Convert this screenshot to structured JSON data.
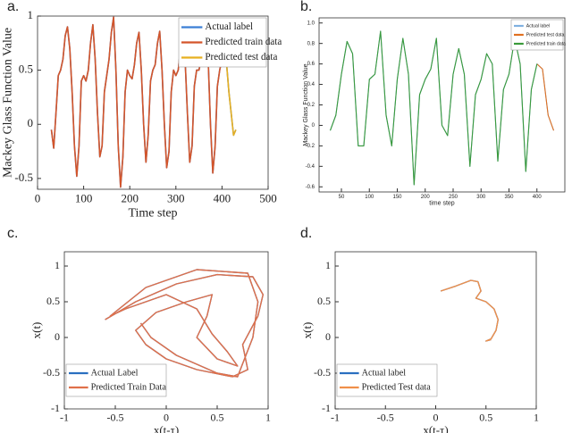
{
  "chart_data": [
    {
      "type": "line",
      "label": "a.",
      "xlabel": "Time step",
      "ylabel": "Mackey Glass Function Value",
      "xlim": [
        0,
        500
      ],
      "xticks": [
        0,
        100,
        200,
        300,
        400,
        500
      ],
      "ylim": [
        -0.6,
        1
      ],
      "yticks": [
        -0.5,
        0,
        0.5,
        1
      ],
      "legend": "upper right",
      "x": [
        30,
        35,
        40,
        45,
        50,
        55,
        60,
        65,
        70,
        75,
        80,
        85,
        90,
        95,
        100,
        105,
        110,
        115,
        120,
        125,
        130,
        135,
        140,
        145,
        150,
        155,
        160,
        165,
        170,
        175,
        180,
        185,
        190,
        195,
        200,
        205,
        210,
        215,
        220,
        225,
        230,
        235,
        240,
        245,
        250,
        255,
        260,
        265,
        270,
        275,
        280,
        285,
        290,
        295,
        300,
        305,
        310,
        315,
        320,
        325,
        330,
        335,
        340,
        345,
        350,
        355,
        360,
        365,
        370,
        375,
        380,
        385,
        390,
        395,
        400,
        405,
        410,
        415,
        420,
        425,
        430
      ],
      "series": [
        {
          "name": "Actual label",
          "color": "#3a7fd5",
          "values": [
            -0.05,
            -0.22,
            0.1,
            0.45,
            0.5,
            0.6,
            0.82,
            0.9,
            0.7,
            0.3,
            -0.2,
            -0.48,
            -0.2,
            0.4,
            0.45,
            0.4,
            0.5,
            0.75,
            0.92,
            0.6,
            0.1,
            -0.3,
            -0.2,
            0.3,
            0.45,
            0.6,
            0.85,
            0.99,
            0.5,
            -0.2,
            -0.58,
            -0.3,
            0.3,
            0.5,
            0.45,
            0.42,
            0.55,
            0.75,
            0.85,
            0.5,
            0.0,
            -0.35,
            -0.1,
            0.4,
            0.5,
            0.55,
            0.75,
            0.86,
            0.5,
            0.0,
            -0.4,
            -0.25,
            0.3,
            0.5,
            0.45,
            0.5,
            0.7,
            0.88,
            0.6,
            0.1,
            -0.35,
            -0.2,
            0.35,
            0.5,
            0.5,
            0.6,
            0.85,
            0.95,
            0.6,
            0.0,
            -0.45,
            -0.2,
            0.35,
            0.5,
            0.6,
            0.72,
            0.55,
            0.3,
            0.1,
            -0.1,
            -0.05
          ]
        },
        {
          "name": "Predicted train data",
          "color": "#d4552a",
          "values": [
            -0.05,
            -0.22,
            0.1,
            0.45,
            0.5,
            0.6,
            0.82,
            0.9,
            0.7,
            0.3,
            -0.2,
            -0.48,
            -0.2,
            0.4,
            0.45,
            0.4,
            0.5,
            0.75,
            0.92,
            0.6,
            0.1,
            -0.3,
            -0.2,
            0.3,
            0.45,
            0.6,
            0.85,
            0.99,
            0.5,
            -0.2,
            -0.58,
            -0.3,
            0.3,
            0.5,
            0.45,
            0.42,
            0.55,
            0.75,
            0.85,
            0.5,
            0.0,
            -0.35,
            -0.1,
            0.4,
            0.5,
            0.55,
            0.75,
            0.86,
            0.5,
            0.0,
            -0.4,
            -0.25,
            0.3,
            0.5,
            0.45,
            0.5,
            0.7,
            0.88,
            0.6,
            0.1,
            -0.35,
            -0.2,
            0.35,
            0.5,
            0.5,
            0.6,
            0.85,
            0.95,
            0.6,
            0.0,
            -0.45,
            -0.2,
            0.35,
            0.5,
            0.6,
            null,
            null,
            null,
            null,
            null,
            null
          ]
        },
        {
          "name": "Predicted test data",
          "color": "#e8b020",
          "values": [
            null,
            null,
            null,
            null,
            null,
            null,
            null,
            null,
            null,
            null,
            null,
            null,
            null,
            null,
            null,
            null,
            null,
            null,
            null,
            null,
            null,
            null,
            null,
            null,
            null,
            null,
            null,
            null,
            null,
            null,
            null,
            null,
            null,
            null,
            null,
            null,
            null,
            null,
            null,
            null,
            null,
            null,
            null,
            null,
            null,
            null,
            null,
            null,
            null,
            null,
            null,
            null,
            null,
            null,
            null,
            null,
            null,
            null,
            null,
            null,
            null,
            null,
            null,
            null,
            null,
            null,
            null,
            null,
            null,
            null,
            null,
            null,
            null,
            null,
            0.6,
            0.72,
            0.55,
            0.3,
            0.1,
            -0.1,
            -0.05
          ]
        }
      ]
    },
    {
      "type": "line",
      "label": "b.",
      "xlabel": "time step",
      "ylabel": "Mackey Glass Function Value",
      "xlim": [
        10,
        450
      ],
      "xticks": [
        50,
        100,
        150,
        200,
        250,
        300,
        350,
        400
      ],
      "ylim": [
        -0.65,
        1.05
      ],
      "yticks": [
        -0.6,
        -0.4,
        -0.2,
        0,
        0.2,
        0.4,
        0.6,
        0.8,
        {
          "value": 1,
          "label": "1.0"
        }
      ],
      "legend": "upper right",
      "x": [
        30,
        40,
        50,
        60,
        70,
        80,
        90,
        100,
        110,
        120,
        130,
        140,
        150,
        160,
        170,
        180,
        190,
        200,
        210,
        220,
        230,
        240,
        250,
        260,
        270,
        280,
        290,
        300,
        310,
        320,
        330,
        340,
        350,
        360,
        370,
        380,
        390,
        400,
        410,
        420,
        430
      ],
      "series": [
        {
          "name": "Actual label",
          "color": "#7fb0e0",
          "values": [
            -0.05,
            0.1,
            0.5,
            0.82,
            0.7,
            -0.2,
            -0.2,
            0.45,
            0.5,
            0.92,
            0.1,
            -0.2,
            0.45,
            0.85,
            0.5,
            -0.58,
            0.3,
            0.45,
            0.55,
            0.85,
            0.0,
            -0.1,
            0.5,
            0.75,
            0.5,
            -0.4,
            0.3,
            0.45,
            0.7,
            0.6,
            -0.35,
            0.35,
            0.5,
            0.85,
            0.6,
            -0.45,
            0.35,
            0.6,
            0.55,
            0.1,
            -0.05
          ]
        },
        {
          "name": "Predicted test data",
          "color": "#e07020",
          "values": [
            null,
            null,
            null,
            null,
            null,
            null,
            null,
            null,
            null,
            null,
            null,
            null,
            null,
            null,
            null,
            null,
            null,
            null,
            null,
            null,
            null,
            null,
            null,
            null,
            null,
            null,
            null,
            null,
            null,
            null,
            null,
            null,
            null,
            null,
            null,
            null,
            null,
            0.6,
            0.55,
            0.1,
            -0.05
          ]
        },
        {
          "name": "Predicted train data",
          "color": "#3a9a3a",
          "values": [
            -0.05,
            0.1,
            0.5,
            0.82,
            0.7,
            -0.2,
            -0.2,
            0.45,
            0.5,
            0.92,
            0.1,
            -0.2,
            0.45,
            0.85,
            0.5,
            -0.58,
            0.3,
            0.45,
            0.55,
            0.85,
            0.0,
            -0.1,
            0.5,
            0.75,
            0.5,
            -0.4,
            0.3,
            0.45,
            0.7,
            0.6,
            -0.35,
            0.35,
            0.5,
            0.85,
            0.6,
            -0.45,
            0.35,
            0.6,
            null,
            null,
            null
          ]
        }
      ]
    },
    {
      "type": "line",
      "label": "c.",
      "xlabel": "x(t-τ)",
      "ylabel": "x(t)",
      "xlim": [
        -1,
        1
      ],
      "xticks": [
        -1,
        -0.5,
        0,
        0.5,
        1
      ],
      "ylim": [
        -1,
        1.2
      ],
      "yticks": [
        -1,
        -0.5,
        0,
        0.5,
        1
      ],
      "legend": "lower left",
      "series": [
        {
          "name": "Actual Label",
          "color": "#2a6fc0",
          "x": [
            -0.6,
            -0.3,
            0.1,
            0.5,
            0.85,
            0.95,
            0.9,
            0.75,
            0.8,
            0.65,
            0.3,
            0.0,
            -0.2,
            -0.3,
            -0.1,
            0.2,
            0.45,
            0.4,
            0.3,
            0.5,
            0.7,
            0.6,
            0.45,
            0.3,
            0.0,
            -0.4,
            -0.55,
            -0.2,
            0.3,
            0.8,
            0.9,
            0.85,
            0.7,
            0.5,
            0.1,
            -0.15,
            -0.25
          ],
          "values": [
            0.25,
            0.5,
            0.75,
            0.88,
            0.85,
            0.6,
            0.3,
            -0.1,
            -0.45,
            -0.55,
            -0.45,
            -0.3,
            -0.1,
            0.1,
            0.35,
            0.5,
            0.6,
            0.3,
            0.0,
            -0.3,
            -0.4,
            -0.2,
            0.05,
            0.4,
            0.6,
            0.4,
            0.3,
            0.7,
            0.95,
            0.9,
            0.5,
            0.0,
            -0.55,
            -0.5,
            -0.25,
            0.0,
            0.2
          ]
        },
        {
          "name": "Predicted Train Data",
          "color": "#e0704a",
          "x": [
            -0.6,
            -0.3,
            0.1,
            0.5,
            0.85,
            0.95,
            0.9,
            0.75,
            0.8,
            0.65,
            0.3,
            0.0,
            -0.2,
            -0.3,
            -0.1,
            0.2,
            0.45,
            0.4,
            0.3,
            0.5,
            0.7,
            0.6,
            0.45,
            0.3,
            0.0,
            -0.4,
            -0.55,
            -0.2,
            0.3,
            0.8,
            0.9,
            0.85,
            0.7,
            0.5,
            0.1,
            -0.15,
            -0.25
          ],
          "values": [
            0.25,
            0.5,
            0.75,
            0.88,
            0.85,
            0.6,
            0.3,
            -0.1,
            -0.45,
            -0.55,
            -0.45,
            -0.3,
            -0.1,
            0.1,
            0.35,
            0.5,
            0.6,
            0.3,
            0.0,
            -0.3,
            -0.4,
            -0.2,
            0.05,
            0.4,
            0.6,
            0.4,
            0.3,
            0.7,
            0.95,
            0.9,
            0.5,
            0.0,
            -0.55,
            -0.5,
            -0.25,
            0.0,
            0.2
          ]
        }
      ]
    },
    {
      "type": "line",
      "label": "d.",
      "xlabel": "x(t-τ)",
      "ylabel": "x(t)",
      "xlim": [
        -1,
        1
      ],
      "xticks": [
        -1,
        -0.5,
        0,
        0.5,
        1
      ],
      "ylim": [
        -1,
        1.2
      ],
      "yticks": [
        -1,
        -0.5,
        0,
        0.5,
        1
      ],
      "legend": "lower left",
      "series": [
        {
          "name": "Actual label",
          "color": "#2a6fc0",
          "x": [
            0.05,
            0.2,
            0.35,
            0.42,
            0.45,
            0.4,
            0.5,
            0.58,
            0.62,
            0.6,
            0.55,
            0.5,
            0.55
          ],
          "values": [
            0.65,
            0.72,
            0.8,
            0.78,
            0.65,
            0.55,
            0.5,
            0.4,
            0.25,
            0.1,
            -0.02,
            -0.05,
            -0.03
          ]
        },
        {
          "name": "Predicted Test data",
          "color": "#f0904a",
          "x": [
            0.05,
            0.2,
            0.35,
            0.42,
            0.45,
            0.4,
            0.5,
            0.58,
            0.62,
            0.6,
            0.55,
            0.5,
            0.55
          ],
          "values": [
            0.65,
            0.72,
            0.8,
            0.78,
            0.65,
            0.55,
            0.5,
            0.4,
            0.25,
            0.1,
            -0.02,
            -0.05,
            -0.03
          ]
        }
      ]
    }
  ]
}
